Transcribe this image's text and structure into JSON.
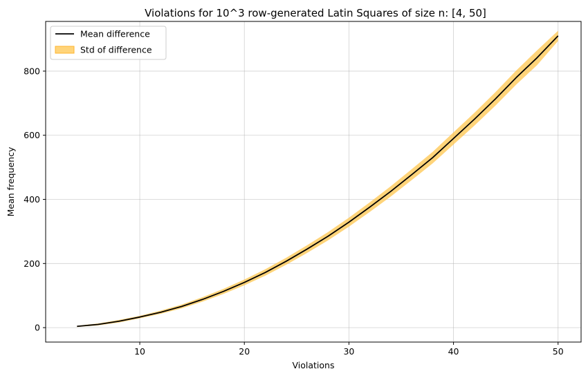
{
  "chart_data": {
    "type": "line",
    "title": "Violations for 10^3 row-generated Latin Squares of size n: [4, 50]",
    "xlabel": "Violations",
    "ylabel": "Mean frequency",
    "xlim": [
      1,
      52.2
    ],
    "ylim": [
      -45,
      955
    ],
    "xticks": [
      10,
      20,
      30,
      40,
      50
    ],
    "yticks": [
      0,
      200,
      400,
      600,
      800
    ],
    "grid": true,
    "legend_position": "upper-left",
    "series": [
      {
        "name": "Mean difference",
        "color": "#000000",
        "x": [
          4,
          6,
          8,
          10,
          12,
          14,
          16,
          18,
          20,
          22,
          24,
          26,
          28,
          30,
          32,
          34,
          36,
          38,
          40,
          42,
          44,
          46,
          48,
          50
        ],
        "y": [
          4,
          10,
          20,
          33,
          48,
          66,
          88,
          113,
          141,
          172,
          207,
          245,
          285,
          329,
          376,
          425,
          477,
          530,
          590,
          650,
          713,
          780,
          842,
          910
        ]
      }
    ],
    "bands": [
      {
        "name": "Std of difference",
        "color": "#ffc54d",
        "x": [
          4,
          6,
          8,
          10,
          12,
          14,
          16,
          18,
          20,
          22,
          24,
          26,
          28,
          30,
          32,
          34,
          36,
          38,
          40,
          42,
          44,
          46,
          48,
          50
        ],
        "lower": [
          2,
          7,
          16,
          29,
          43,
          60,
          81,
          105,
          132,
          162,
          196,
          233,
          272,
          315,
          361,
          409,
          460,
          512,
          571,
          630,
          692,
          758,
          819,
          894
        ],
        "upper": [
          6,
          13,
          24,
          37,
          53,
          72,
          95,
          121,
          150,
          182,
          218,
          257,
          298,
          343,
          391,
          441,
          494,
          548,
          609,
          670,
          734,
          802,
          865,
          926
        ]
      }
    ]
  }
}
